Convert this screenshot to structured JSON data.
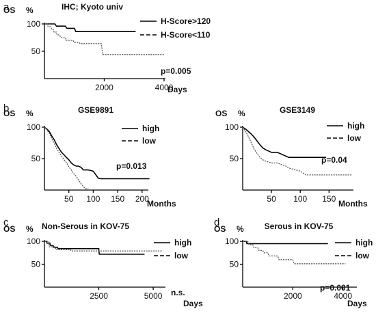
{
  "colors": {
    "line": "#000000",
    "dotted": "#555555",
    "background": "#ffffff"
  },
  "chart_data": [
    {
      "panel": "a",
      "type": "line",
      "title": "IHC; Kyoto univ",
      "ylabel": "OS",
      "yunit": "%",
      "xlabel": "Days",
      "xlim": [
        0,
        4000
      ],
      "ylim": [
        0,
        100
      ],
      "xticks": [
        2000,
        4000
      ],
      "yticks": [
        50,
        100
      ],
      "pvalue": "p=0.005",
      "series": [
        {
          "name": "H-Score>120",
          "style": "solid",
          "x": [
            0,
            350,
            400,
            700,
            750,
            1000,
            1050,
            3050
          ],
          "y": [
            100,
            100,
            96,
            96,
            92,
            92,
            86,
            86
          ]
        },
        {
          "name": "H-Score<110",
          "style": "dashed",
          "x": [
            0,
            100,
            120,
            200,
            250,
            300,
            320,
            400,
            420,
            500,
            550,
            700,
            720,
            950,
            1000,
            1150,
            1200,
            1900,
            1950,
            4000
          ],
          "y": [
            100,
            100,
            95,
            95,
            90,
            90,
            85,
            85,
            80,
            80,
            75,
            75,
            70,
            70,
            66,
            66,
            64,
            64,
            44,
            44
          ]
        }
      ]
    },
    {
      "panel": "b",
      "type": "line",
      "title": "GSE9891",
      "ylabel": "OS",
      "yunit": "%",
      "xlabel": "Months",
      "xlim": [
        0,
        210
      ],
      "ylim": [
        0,
        100
      ],
      "xticks": [
        50,
        100,
        150,
        200
      ],
      "yticks": [
        50,
        100
      ],
      "pvalue": "p=0.013",
      "series": [
        {
          "name": "high",
          "style": "solid",
          "x": [
            0,
            5,
            10,
            15,
            20,
            25,
            30,
            35,
            40,
            45,
            50,
            55,
            60,
            65,
            70,
            75,
            80,
            85,
            90,
            100,
            110,
            115,
            215
          ],
          "y": [
            100,
            97,
            93,
            86,
            80,
            72,
            66,
            60,
            56,
            52,
            48,
            43,
            40,
            38,
            38,
            36,
            32,
            32,
            32,
            30,
            19,
            18,
            18
          ]
        },
        {
          "name": "low",
          "style": "dashed",
          "x": [
            0,
            5,
            10,
            15,
            20,
            25,
            30,
            35,
            40,
            45,
            50,
            55,
            60,
            65,
            70,
            75,
            80,
            85,
            90
          ],
          "y": [
            100,
            96,
            90,
            82,
            74,
            66,
            60,
            54,
            48,
            44,
            37,
            32,
            26,
            22,
            16,
            10,
            5,
            2,
            2
          ]
        }
      ]
    },
    {
      "panel": "",
      "type": "line",
      "title": "GSE3149",
      "ylabel": "OS",
      "yunit": "%",
      "xlabel": "Months",
      "xlim": [
        0,
        190
      ],
      "ylim": [
        0,
        100
      ],
      "xticks": [
        50,
        100,
        150
      ],
      "yticks": [
        50,
        100
      ],
      "pvalue": "p=0.04",
      "series": [
        {
          "name": "high",
          "style": "solid",
          "x": [
            0,
            5,
            10,
            15,
            20,
            25,
            30,
            35,
            40,
            50,
            60,
            80,
            85,
            145
          ],
          "y": [
            100,
            97,
            93,
            89,
            84,
            78,
            72,
            67,
            64,
            60,
            60,
            52,
            52,
            52
          ]
        },
        {
          "name": "low",
          "style": "dashed",
          "x": [
            0,
            5,
            10,
            15,
            20,
            25,
            30,
            35,
            40,
            50,
            60,
            75,
            80,
            100,
            110,
            190
          ],
          "y": [
            100,
            93,
            85,
            75,
            65,
            58,
            52,
            48,
            46,
            43,
            43,
            38,
            35,
            30,
            24,
            24
          ]
        }
      ]
    },
    {
      "panel": "c",
      "type": "line",
      "title": "Non-Serous in KOV-75",
      "ylabel": "OS",
      "yunit": "%",
      "xlabel": "Days",
      "xlim": [
        0,
        5500
      ],
      "ylim": [
        0,
        100
      ],
      "xticks": [
        2500,
        5000
      ],
      "yticks": [
        50,
        100
      ],
      "pvalue": "n.s.",
      "series": [
        {
          "name": "high",
          "style": "solid",
          "x": [
            0,
            100,
            120,
            250,
            270,
            400,
            420,
            600,
            620,
            2500,
            2520,
            4600
          ],
          "y": [
            100,
            100,
            96,
            96,
            91,
            91,
            87,
            87,
            84,
            84,
            72,
            72
          ]
        },
        {
          "name": "low",
          "style": "dashed",
          "x": [
            0,
            200,
            220,
            500,
            520,
            1200,
            1220,
            5400
          ],
          "y": [
            100,
            100,
            88,
            88,
            82,
            82,
            79,
            79
          ]
        }
      ]
    },
    {
      "panel": "d",
      "type": "line",
      "title": "Serous in KOV-75",
      "ylabel": "OS",
      "yunit": "%",
      "xlabel": "Days",
      "xlim": [
        0,
        4500
      ],
      "ylim": [
        0,
        100
      ],
      "xticks": [
        2000,
        4000
      ],
      "yticks": [
        50,
        100
      ],
      "pvalue": "p=0.001",
      "series": [
        {
          "name": "high",
          "style": "solid",
          "x": [
            0,
            150,
            170,
            3400
          ],
          "y": [
            100,
            100,
            95,
            95
          ]
        },
        {
          "name": "low",
          "style": "dashed",
          "x": [
            0,
            200,
            250,
            400,
            450,
            600,
            650,
            800,
            850,
            1000,
            1050,
            1400,
            1450,
            2000,
            2050,
            4100
          ],
          "y": [
            100,
            100,
            93,
            93,
            86,
            86,
            80,
            80,
            75,
            75,
            68,
            68,
            60,
            60,
            51,
            51
          ]
        }
      ]
    }
  ]
}
